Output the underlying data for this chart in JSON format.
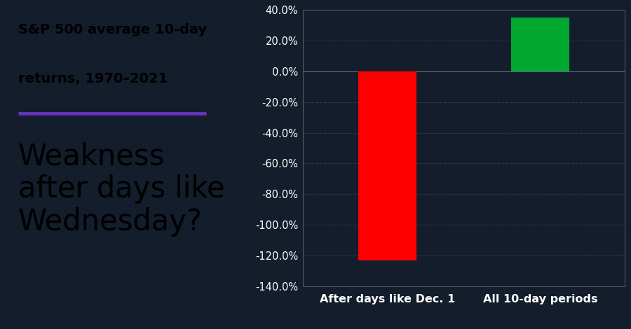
{
  "categories": [
    "After days like Dec. 1",
    "All 10-day periods"
  ],
  "values": [
    -1.23,
    0.35
  ],
  "bar_colors": [
    "#ff0000",
    "#00a832"
  ],
  "bg_color": "#131d2b",
  "left_bg_color": "#ffffff",
  "title_line1": "S&P 500 average 10-day",
  "title_line2": "returns, 1970–2021",
  "subtitle": "Weakness\nafter days like\nWednesday?",
  "title_color": "#000000",
  "subtitle_color": "#000000",
  "accent_line_color": "#6633bb",
  "tick_label_color": "#ffffff",
  "axis_label_color": "#ffffff",
  "grid_color": "#2a3a4a",
  "ylim": [
    -1.4,
    0.4
  ],
  "yticks": [
    -1.4,
    -1.2,
    -1.0,
    -0.8,
    -0.6,
    -0.4,
    -0.2,
    0.0,
    0.2,
    0.4
  ],
  "title_fontsize": 14,
  "subtitle_fontsize": 30,
  "tick_fontsize": 10.5,
  "xlabel_fontsize": 11.5
}
